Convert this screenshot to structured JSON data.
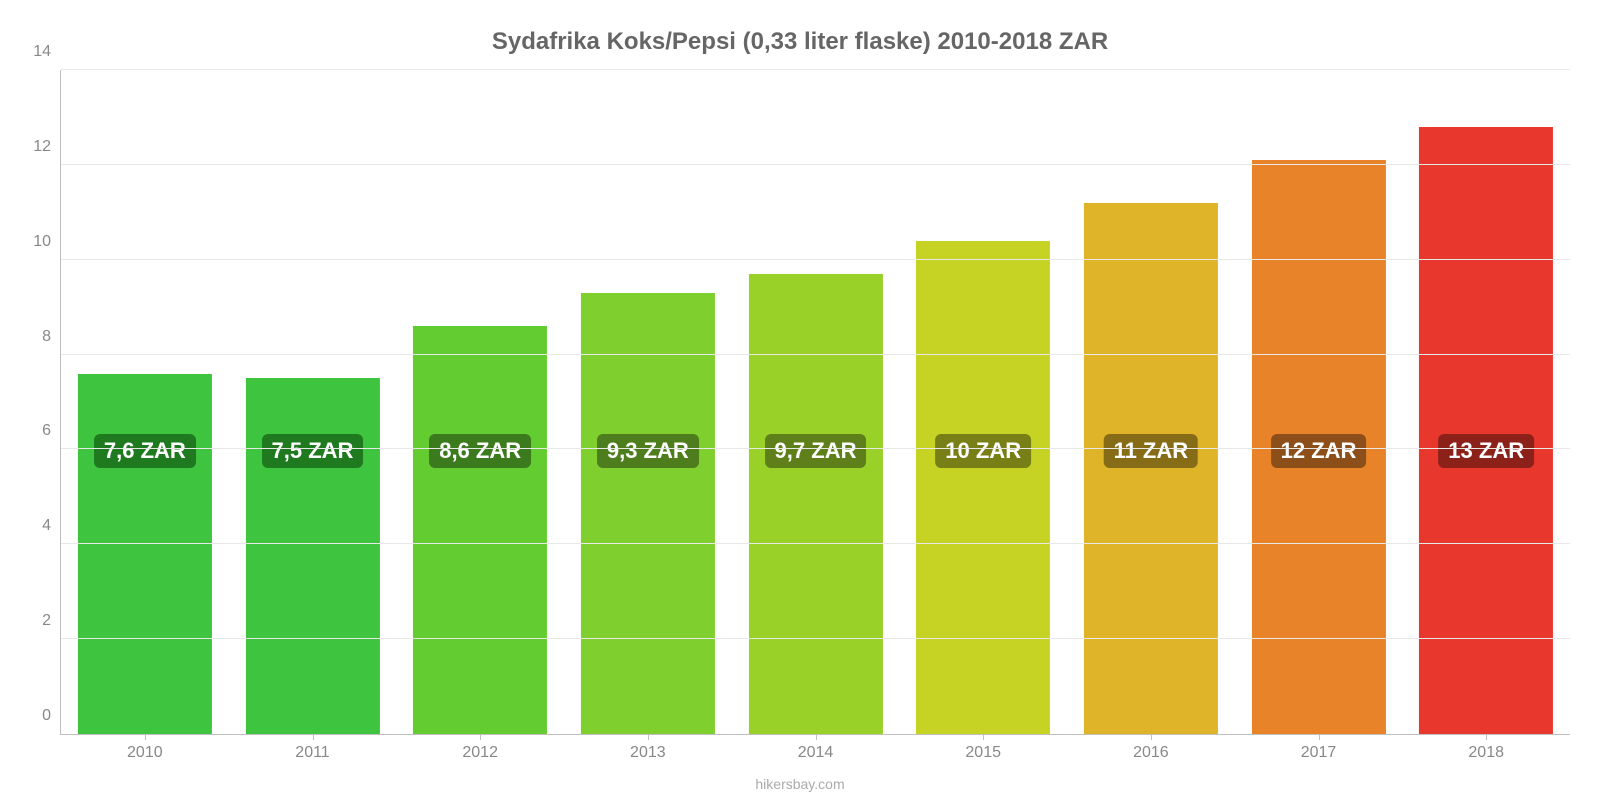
{
  "chart": {
    "type": "bar",
    "title": "Sydafrika Koks/Pepsi (0,33 liter flaske) 2010-2018 ZAR",
    "title_fontsize": 24,
    "title_color": "#666666",
    "credit": "hikersbay.com",
    "credit_fontsize": 14,
    "credit_color": "#aaaaaa",
    "background_color": "#ffffff",
    "grid_color": "#e8e8e8",
    "axis_color": "#bfbfbf",
    "tick_label_color": "#888888",
    "tick_label_fontsize": 16,
    "y": {
      "min": 0,
      "max": 14,
      "ticks": [
        0,
        2,
        4,
        6,
        8,
        10,
        12,
        14
      ]
    },
    "bar_width_pct": 80,
    "bar_label_fontsize": 22,
    "bar_label_text_color": "#ffffff",
    "bar_label_vpos_pct": 40,
    "bars": [
      {
        "category": "2010",
        "value": 7.6,
        "label": "7,6 ZAR",
        "fill": "#3fc43f",
        "label_bg": "#1f7a1f"
      },
      {
        "category": "2011",
        "value": 7.5,
        "label": "7,5 ZAR",
        "fill": "#3fc43f",
        "label_bg": "#1f7a1f"
      },
      {
        "category": "2012",
        "value": 8.6,
        "label": "8,6 ZAR",
        "fill": "#63cc30",
        "label_bg": "#3b7a1d"
      },
      {
        "category": "2013",
        "value": 9.3,
        "label": "9,3 ZAR",
        "fill": "#7fcf2e",
        "label_bg": "#4d7d1c"
      },
      {
        "category": "2014",
        "value": 9.7,
        "label": "9,7 ZAR",
        "fill": "#9ad129",
        "label_bg": "#5e7f19"
      },
      {
        "category": "2015",
        "value": 10.4,
        "label": "10 ZAR",
        "fill": "#c6d324",
        "label_bg": "#787f16"
      },
      {
        "category": "2016",
        "value": 11.2,
        "label": "11 ZAR",
        "fill": "#e0b428",
        "label_bg": "#876c18"
      },
      {
        "category": "2017",
        "value": 12.1,
        "label": "12 ZAR",
        "fill": "#e8832a",
        "label_bg": "#8c4f19"
      },
      {
        "category": "2018",
        "value": 12.8,
        "label": "13 ZAR",
        "fill": "#e8372c",
        "label_bg": "#8c211a"
      }
    ]
  }
}
